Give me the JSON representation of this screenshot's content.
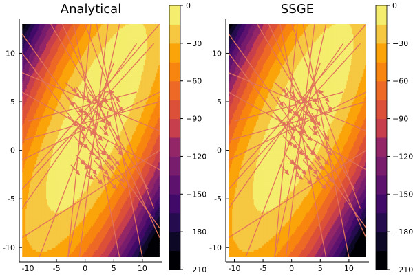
{
  "chart_data": [
    {
      "type": "heatmap",
      "title": "Analytical",
      "xlabel": "",
      "ylabel": "",
      "xlim": [
        -11.5,
        13.5
      ],
      "ylim": [
        -11.5,
        13.5
      ],
      "field_extent": {
        "x": [
          -11,
          13
        ],
        "y": [
          -11,
          13
        ]
      },
      "xticks": [
        -10,
        -5,
        0,
        5,
        10
      ],
      "xtick_labels": [
        "-10",
        "-5",
        "0",
        "5",
        "10"
      ],
      "yticks": [
        -10,
        -5,
        0,
        5,
        10
      ],
      "ytick_labels": [
        "-10",
        "-5",
        "0",
        "5",
        "10"
      ],
      "contour_field": {
        "form": "quadratic log-density",
        "center": [
          2,
          3.5
        ],
        "xx": 0.5,
        "yy": 0.4,
        "xy": -0.35
      },
      "colorbar": {
        "range": [
          -210,
          0
        ],
        "levels": 14,
        "colormap": "inferno",
        "ticks": [
          0,
          -30,
          -60,
          -90,
          -120,
          -150,
          -180,
          -210
        ],
        "tick_labels": [
          "0",
          "−30",
          "−60",
          "−90",
          "−120",
          "−150",
          "−180",
          "−210"
        ]
      },
      "arrows": [
        [
          -3.5,
          7.0,
          -1.5,
          6.0
        ],
        [
          -2.5,
          6.5,
          -1.0,
          5.5
        ],
        [
          -1.5,
          6.5,
          0.0,
          5.2
        ],
        [
          -0.5,
          6.0,
          1.0,
          4.8
        ],
        [
          0.5,
          6.0,
          2.0,
          5.0
        ],
        [
          1.5,
          5.5,
          3.0,
          4.5
        ],
        [
          2.5,
          5.5,
          4.0,
          5.0
        ],
        [
          3.5,
          5.0,
          4.8,
          4.0
        ],
        [
          4.5,
          5.0,
          5.5,
          3.5
        ],
        [
          -2.0,
          5.0,
          -0.5,
          3.8
        ],
        [
          -1.0,
          4.5,
          0.5,
          3.5
        ],
        [
          0.0,
          4.0,
          1.5,
          3.0
        ],
        [
          1.0,
          4.5,
          2.5,
          3.5
        ],
        [
          2.0,
          4.0,
          3.5,
          2.8
        ],
        [
          3.0,
          3.8,
          4.5,
          2.5
        ],
        [
          4.0,
          4.0,
          3.5,
          2.0
        ],
        [
          -3.0,
          3.5,
          -1.5,
          2.5
        ],
        [
          -1.5,
          3.0,
          0.0,
          2.0
        ],
        [
          0.5,
          2.5,
          2.0,
          1.8
        ],
        [
          1.5,
          2.0,
          3.0,
          1.0
        ],
        [
          2.5,
          2.5,
          4.0,
          1.5
        ],
        [
          -2.0,
          1.5,
          -0.5,
          0.5
        ],
        [
          -1.0,
          1.0,
          0.5,
          0.2
        ],
        [
          0.0,
          0.5,
          1.5,
          -0.5
        ],
        [
          1.0,
          0.0,
          2.5,
          -1.0
        ],
        [
          2.0,
          0.5,
          3.5,
          -0.5
        ],
        [
          3.0,
          0.0,
          4.5,
          -1.0
        ],
        [
          -1.5,
          -0.5,
          0.0,
          -1.5
        ],
        [
          -0.5,
          -1.0,
          1.0,
          -2.0
        ],
        [
          0.5,
          -1.5,
          2.0,
          -2.5
        ],
        [
          1.5,
          -1.0,
          3.0,
          -2.0
        ],
        [
          2.5,
          -1.5,
          4.0,
          -2.5
        ],
        [
          3.5,
          -1.0,
          5.0,
          -2.0
        ],
        [
          4.5,
          -0.5,
          6.0,
          -1.5
        ],
        [
          5.0,
          0.5,
          6.5,
          -0.5
        ],
        [
          0.0,
          -2.5,
          1.5,
          -3.0
        ],
        [
          1.5,
          -2.5,
          3.0,
          -3.5
        ],
        [
          3.0,
          -2.5,
          4.5,
          -3.0
        ],
        [
          4.0,
          -3.0,
          5.5,
          -4.0
        ],
        [
          5.5,
          -2.5,
          6.8,
          -3.3
        ],
        [
          -2.5,
          -1.5,
          -1.0,
          -2.5
        ],
        [
          -1.0,
          2.5,
          0.0,
          1.0
        ],
        [
          3.5,
          6.0,
          5.0,
          6.0
        ],
        [
          4.5,
          6.0,
          6.0,
          5.0
        ],
        [
          5.5,
          5.0,
          6.5,
          4.0
        ],
        [
          5.0,
          2.0,
          6.0,
          1.0
        ],
        [
          -3.0,
          5.5,
          -2.0,
          4.5
        ],
        [
          2.0,
          3.0,
          1.0,
          1.5
        ],
        [
          4.0,
          1.0,
          3.0,
          -0.5
        ],
        [
          1.0,
          -3.0,
          0.0,
          -1.5
        ]
      ],
      "long_lines": [
        [
          -11,
          10,
          7,
          -4
        ],
        [
          -10,
          3,
          9,
          6
        ],
        [
          -11,
          -4,
          12,
          11
        ],
        [
          -8,
          -11,
          5,
          9
        ],
        [
          -6,
          13,
          11,
          -4
        ],
        [
          -3,
          -11,
          1,
          13
        ],
        [
          -11,
          6,
          13,
          -2
        ],
        [
          -11,
          1,
          13,
          5
        ],
        [
          -9,
          -2,
          13,
          13
        ],
        [
          -2,
          13,
          6,
          -11
        ],
        [
          4,
          13,
          -1,
          -11
        ],
        [
          -11,
          -6,
          9,
          11
        ],
        [
          2,
          13,
          10,
          -11
        ],
        [
          -11,
          12,
          13,
          -8
        ],
        [
          13,
          -9,
          -4,
          13
        ],
        [
          0,
          13,
          12,
          -6
        ],
        [
          -11,
          -9,
          13,
          0
        ],
        [
          6,
          13,
          -3,
          -11
        ],
        [
          -11,
          8,
          13,
          2
        ],
        [
          -11,
          -1,
          13,
          6
        ]
      ]
    },
    {
      "type": "heatmap",
      "title": "SSGE",
      "xlabel": "",
      "ylabel": "",
      "xlim": [
        -11.5,
        13.5
      ],
      "ylim": [
        -11.5,
        13.5
      ],
      "field_extent": {
        "x": [
          -11,
          13
        ],
        "y": [
          -11,
          13
        ]
      },
      "xticks": [
        -10,
        -5,
        0,
        5,
        10
      ],
      "xtick_labels": [
        "-10",
        "-5",
        "0",
        "5",
        "10"
      ],
      "yticks": [
        -10,
        -5,
        0,
        5,
        10
      ],
      "ytick_labels": [
        "-10",
        "-5",
        "0",
        "5",
        "10"
      ],
      "contour_field": {
        "form": "quadratic log-density",
        "center": [
          2,
          3.5
        ],
        "xx": 0.5,
        "yy": 0.4,
        "xy": -0.35
      },
      "colorbar": {
        "range": [
          -210,
          0
        ],
        "levels": 14,
        "colormap": "inferno",
        "ticks": [
          0,
          -30,
          -60,
          -90,
          -120,
          -150,
          -180,
          -210
        ],
        "tick_labels": [
          "0",
          "−30",
          "−60",
          "−90",
          "−120",
          "−150",
          "−180",
          "−210"
        ]
      },
      "arrows": [
        [
          -3.0,
          7.0,
          -1.0,
          6.0
        ],
        [
          -2.0,
          6.5,
          -0.5,
          5.5
        ],
        [
          -1.0,
          6.5,
          0.5,
          5.2
        ],
        [
          0.0,
          6.0,
          1.5,
          4.8
        ],
        [
          1.0,
          6.0,
          2.5,
          5.0
        ],
        [
          2.0,
          5.5,
          3.5,
          4.5
        ],
        [
          3.0,
          5.5,
          4.5,
          5.0
        ],
        [
          4.0,
          5.0,
          5.3,
          4.0
        ],
        [
          5.0,
          5.0,
          6.0,
          3.5
        ],
        [
          -1.5,
          5.0,
          0.0,
          3.8
        ],
        [
          -0.5,
          4.5,
          1.0,
          3.5
        ],
        [
          0.5,
          4.0,
          2.0,
          3.0
        ],
        [
          1.5,
          4.5,
          3.0,
          3.5
        ],
        [
          2.5,
          4.0,
          4.0,
          2.8
        ],
        [
          3.5,
          3.8,
          5.0,
          2.5
        ],
        [
          4.5,
          4.0,
          4.0,
          2.0
        ],
        [
          -2.5,
          3.5,
          -1.0,
          2.5
        ],
        [
          -1.0,
          3.0,
          0.5,
          2.0
        ],
        [
          1.0,
          2.5,
          2.5,
          1.8
        ],
        [
          2.0,
          2.0,
          3.5,
          1.0
        ],
        [
          3.0,
          2.5,
          4.5,
          1.5
        ],
        [
          -1.5,
          1.5,
          0.0,
          0.5
        ],
        [
          -0.5,
          1.0,
          1.0,
          0.2
        ],
        [
          0.5,
          0.5,
          2.0,
          -0.5
        ],
        [
          1.5,
          0.0,
          3.0,
          -1.0
        ],
        [
          2.5,
          0.5,
          4.0,
          -0.5
        ],
        [
          3.5,
          0.0,
          5.0,
          -1.0
        ],
        [
          -1.0,
          -0.5,
          0.5,
          -1.5
        ],
        [
          0.0,
          -1.0,
          1.5,
          -2.0
        ],
        [
          1.0,
          -1.5,
          2.5,
          -2.5
        ],
        [
          2.0,
          -1.0,
          3.5,
          -2.0
        ],
        [
          3.0,
          -1.5,
          4.5,
          -2.5
        ],
        [
          4.0,
          -1.0,
          5.5,
          -2.0
        ],
        [
          5.0,
          -0.5,
          6.5,
          -1.5
        ],
        [
          5.5,
          0.5,
          7.0,
          -0.5
        ],
        [
          0.5,
          -2.5,
          2.0,
          -3.0
        ],
        [
          2.0,
          -2.5,
          3.5,
          -3.5
        ],
        [
          3.5,
          -2.5,
          5.0,
          -3.0
        ],
        [
          4.5,
          -3.0,
          6.0,
          -4.0
        ],
        [
          6.0,
          -2.5,
          7.3,
          -3.3
        ],
        [
          -2.0,
          -1.5,
          -0.5,
          -2.5
        ],
        [
          -0.5,
          2.5,
          0.5,
          1.0
        ],
        [
          4.0,
          6.0,
          5.5,
          6.0
        ],
        [
          5.0,
          6.0,
          6.5,
          5.0
        ],
        [
          6.0,
          5.0,
          7.0,
          4.0
        ],
        [
          5.5,
          2.0,
          6.5,
          1.0
        ],
        [
          -2.5,
          5.5,
          -1.5,
          4.5
        ],
        [
          2.5,
          3.0,
          1.5,
          1.5
        ],
        [
          4.5,
          1.0,
          3.5,
          -0.5
        ],
        [
          1.5,
          -3.0,
          0.5,
          -1.5
        ]
      ],
      "long_lines": [
        [
          -11,
          10,
          7,
          -4
        ],
        [
          -10,
          3,
          9,
          6
        ],
        [
          -11,
          -4,
          12,
          11
        ],
        [
          -8,
          -11,
          5,
          9
        ],
        [
          -6,
          13,
          11,
          -4
        ],
        [
          -3,
          -11,
          1,
          13
        ],
        [
          -11,
          6,
          13,
          -2
        ],
        [
          -11,
          1,
          13,
          5
        ],
        [
          -9,
          -2,
          13,
          13
        ],
        [
          -2,
          13,
          6,
          -11
        ],
        [
          4,
          13,
          -1,
          -11
        ],
        [
          -11,
          -6,
          9,
          11
        ],
        [
          2,
          13,
          10,
          -11
        ],
        [
          -11,
          12,
          13,
          -8
        ],
        [
          13,
          -9,
          -4,
          13
        ],
        [
          0,
          13,
          12,
          -6
        ],
        [
          -11,
          -9,
          13,
          0
        ],
        [
          6,
          13,
          -3,
          -11
        ],
        [
          -11,
          8,
          13,
          2
        ],
        [
          -11,
          -1,
          13,
          6
        ]
      ]
    }
  ],
  "colors": {
    "arrow": "#e1735c",
    "axis": "#000000",
    "background": "#ffffff"
  }
}
